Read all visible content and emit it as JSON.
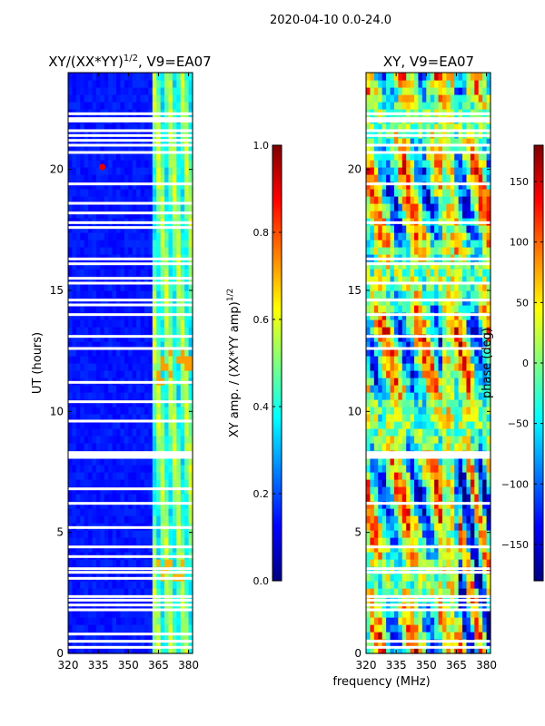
{
  "suptitle": "2020-04-10 0.0-24.0",
  "shared_xlabel": "frequency (MHz)",
  "colors": {
    "jet": [
      "#00007f",
      "#0000ff",
      "#007fff",
      "#00ffff",
      "#7fff7f",
      "#ffff00",
      "#ff7f00",
      "#ff0000",
      "#7f0000"
    ],
    "gap": "#ffffff",
    "axis": "#000000"
  },
  "chart_data": [
    {
      "type": "heatmap",
      "title_main": "XY/(XX*YY)",
      "title_sup": "1/2",
      "title_suffix": ", V9=EA07",
      "xlabel": "",
      "ylabel": "UT (hours)",
      "xlim": [
        320,
        382
      ],
      "ylim": [
        0,
        24
      ],
      "xticks": [
        320,
        335,
        350,
        365,
        380
      ],
      "yticks": [
        0,
        5,
        10,
        15,
        20
      ],
      "colorbar": {
        "label_main": "XY amp. / (XX*YY amp)",
        "label_sup": "1/2",
        "range": [
          0.0,
          1.0
        ],
        "ticks": [
          "0.0",
          "0.2",
          "0.4",
          "0.6",
          "0.8",
          "1.0"
        ],
        "tick_values": [
          0.0,
          0.2,
          0.4,
          0.6,
          0.8,
          1.0
        ]
      },
      "flagged_hours": [
        0.25,
        0.5,
        0.8,
        1.8,
        2.0,
        2.2,
        2.35,
        3.1,
        3.35,
        3.5,
        4.0,
        4.4,
        5.2,
        6.2,
        6.8,
        8.1,
        8.2,
        8.3,
        9.6,
        10.4,
        11.2,
        12.6,
        13.1,
        14.0,
        14.4,
        14.6,
        15.3,
        15.5,
        16.1,
        16.3,
        17.6,
        17.8,
        18.2,
        18.6,
        19.4,
        20.7,
        21.0,
        21.2,
        21.4,
        21.6,
        22.0,
        22.1,
        22.3
      ],
      "bright_band_mhz": [
        363,
        382
      ],
      "hotspot": {
        "hour": 20.1,
        "freq": 337,
        "value": 0.9
      }
    },
    {
      "type": "heatmap",
      "title_main": "XY, V9=EA07",
      "title_sup": "",
      "title_suffix": "",
      "xlabel": "",
      "ylabel": "",
      "xlim": [
        320,
        382
      ],
      "ylim": [
        0,
        24
      ],
      "xticks": [
        320,
        335,
        350,
        365,
        380
      ],
      "yticks": [
        0,
        5,
        10,
        15,
        20
      ],
      "colorbar": {
        "label_main": "phase (deg)",
        "label_sup": "",
        "range": [
          -180,
          180
        ],
        "ticks": [
          "−150",
          "−100",
          "−50",
          "0",
          "50",
          "100",
          "150"
        ],
        "tick_values": [
          -150,
          -100,
          -50,
          0,
          50,
          100,
          150
        ]
      },
      "flagged_hours": [
        0.25,
        0.5,
        1.8,
        2.0,
        2.2,
        2.35,
        3.35,
        3.5,
        4.4,
        6.2,
        8.1,
        8.2,
        8.3,
        12.6,
        13.1,
        14.0,
        14.6,
        15.3,
        16.1,
        16.3,
        17.8,
        19.4,
        20.7,
        21.0,
        21.4,
        21.6,
        22.0,
        22.1,
        22.3
      ]
    }
  ]
}
